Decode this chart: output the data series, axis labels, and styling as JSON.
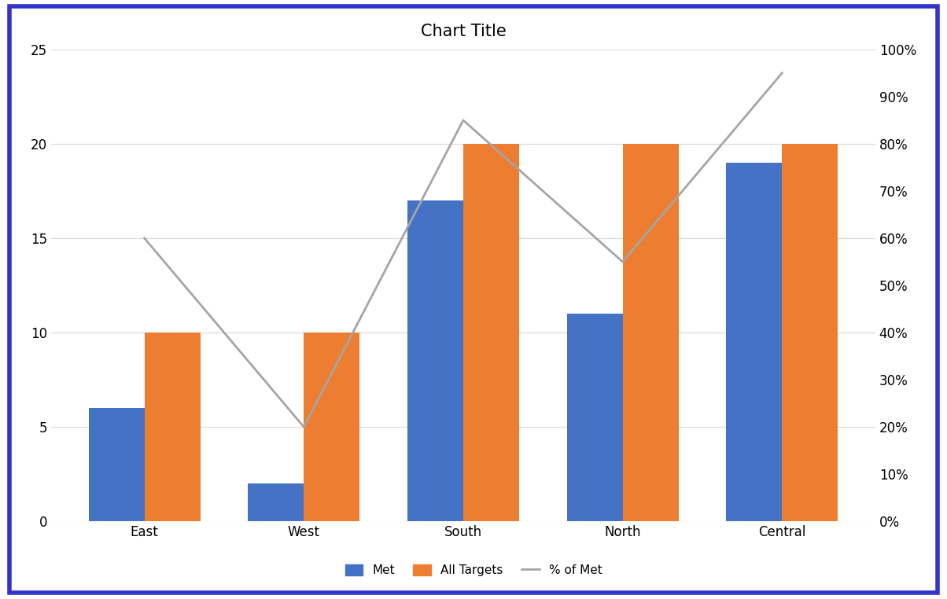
{
  "categories": [
    "East",
    "West",
    "South",
    "North",
    "Central"
  ],
  "met": [
    6,
    2,
    17,
    11,
    19
  ],
  "all_targets": [
    10,
    10,
    20,
    20,
    20
  ],
  "pct_of_met": [
    0.6,
    0.2,
    0.85,
    0.55,
    0.95
  ],
  "bar_color_met": "#4472C4",
  "bar_color_targets": "#ED7D31",
  "line_color": "#A5A5A5",
  "title": "Chart Title",
  "title_fontsize": 15,
  "left_ylim": [
    0,
    25
  ],
  "right_ylim": [
    0,
    1.0
  ],
  "left_yticks": [
    0,
    5,
    10,
    15,
    20,
    25
  ],
  "right_yticks": [
    0.0,
    0.1,
    0.2,
    0.3,
    0.4,
    0.5,
    0.6,
    0.7,
    0.8,
    0.9,
    1.0
  ],
  "legend_labels": [
    "Met",
    "All Targets",
    "% of Met"
  ],
  "background_color": "#FFFFFF",
  "border_color": "#3333CC",
  "bar_width": 0.35,
  "tick_fontsize": 12,
  "label_fontsize": 12,
  "legend_fontsize": 11,
  "grid_color": "#D9D9D9"
}
